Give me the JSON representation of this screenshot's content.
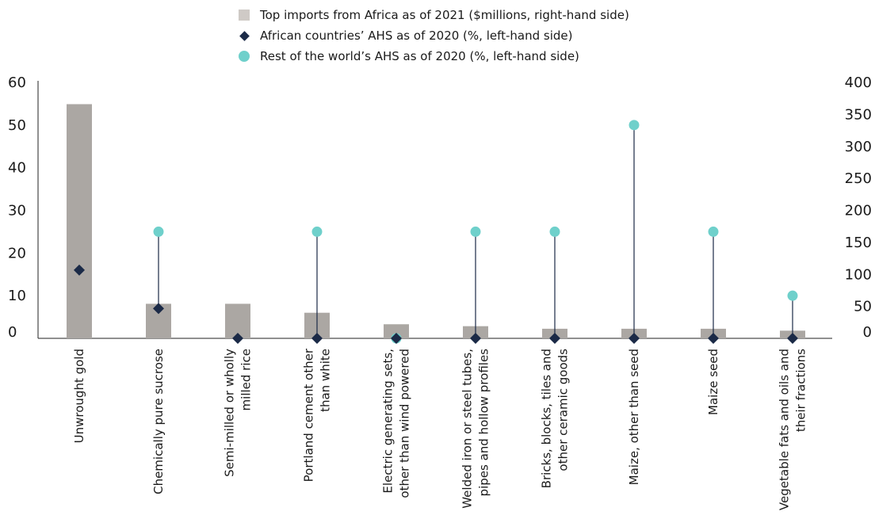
{
  "chart_data": {
    "type": "bar",
    "categories": [
      "Unwrought gold",
      "Chemically pure sucrose",
      "Semi-milled or wholly milled rice",
      "Portland cement other than white",
      "Electric generating sets, other than wind powered",
      "Welded iron or steel tubes, pipes and hollow profiles",
      "Bricks, blocks, tiles and other ceramic goods",
      "Maize, other than seed",
      "Maize seed",
      "Vegetable fats and oils and their fractions"
    ],
    "category_lines": [
      [
        "Unwrought gold"
      ],
      [
        "Chemically pure sucrose"
      ],
      [
        "Semi-milled or wholly",
        "milled rice"
      ],
      [
        "Portland cement other",
        "than white"
      ],
      [
        "Electric generating sets,",
        "other than wind powered"
      ],
      [
        "Welded iron or steel tubes,",
        "pipes and hollow profiles"
      ],
      [
        "Bricks, blocks, tiles and",
        "other ceramic goods"
      ],
      [
        "Maize, other than seed"
      ],
      [
        "Maize seed"
      ],
      [
        "Vegetable fats and oils and",
        "their fractions"
      ]
    ],
    "series": [
      {
        "name": "Top imports from Africa as of 2021 ($millions, right-hand side)",
        "type": "bar",
        "axis": "right",
        "values": [
          366,
          54,
          54,
          40,
          22,
          19,
          15,
          15,
          15,
          12
        ]
      },
      {
        "name": "African countries’ AHS as of 2020 (%, left-hand side)",
        "type": "diamond",
        "axis": "left",
        "values": [
          16,
          7,
          0,
          0,
          0,
          0,
          0,
          0,
          0,
          0
        ]
      },
      {
        "name": "Rest of the world’s AHS as of 2020 (%, left-hand side)",
        "type": "dot",
        "axis": "left",
        "values": [
          null,
          25,
          null,
          25,
          0,
          25,
          25,
          50,
          25,
          10
        ]
      }
    ],
    "left_axis": {
      "ylim": [
        0,
        60
      ],
      "ticks": [
        0,
        10,
        20,
        30,
        40,
        50,
        60
      ]
    },
    "right_axis": {
      "ylim": [
        0,
        400
      ],
      "ticks": [
        0,
        50,
        100,
        150,
        200,
        250,
        300,
        350,
        400
      ]
    },
    "colors": {
      "bar": "#aba7a3",
      "legend_bar": "#cfcac6",
      "diamond": "#1b2a47",
      "dot": "#6fd0cb",
      "stem": "#1b2a47",
      "axis": "#222222"
    },
    "grid": false,
    "legend_position": "top-center"
  }
}
